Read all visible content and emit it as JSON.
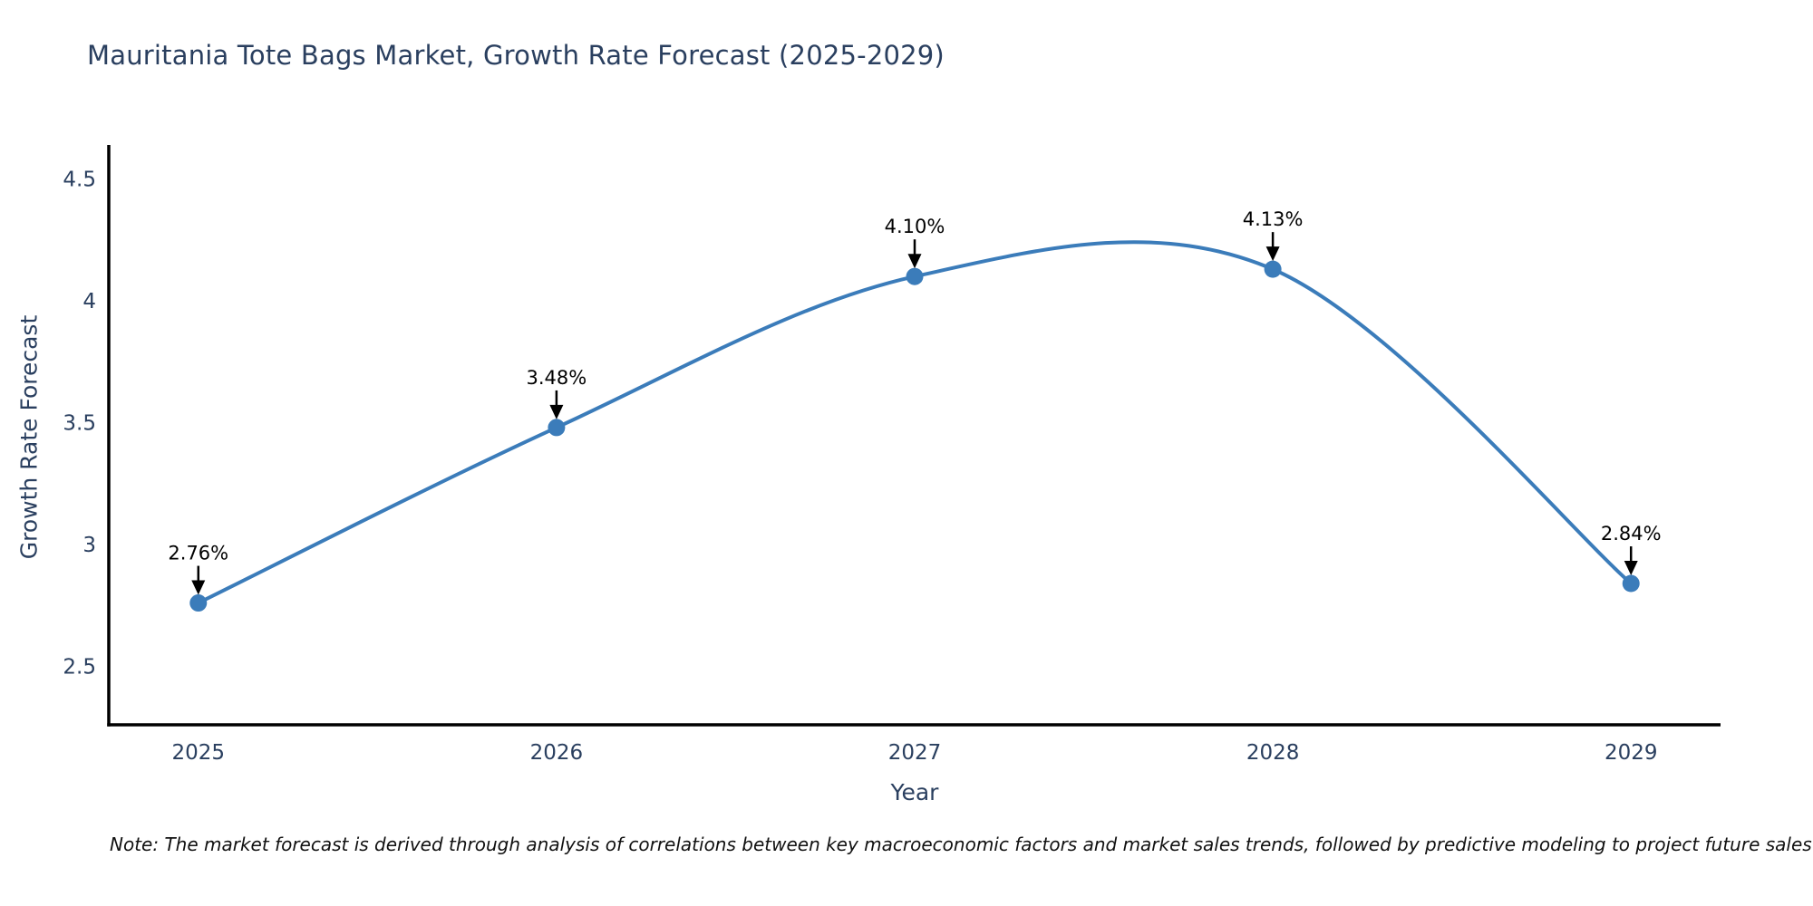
{
  "title": "Mauritania Tote Bags Market, Growth Rate Forecast (2025-2029)",
  "note": "Note: The market forecast is derived through analysis of correlations between key macroeconomic factors and market sales trends, followed by predictive modeling to project future sales",
  "chart_data": {
    "type": "line",
    "title": "Mauritania Tote Bags Market, Growth Rate Forecast (2025-2029)",
    "xlabel": "Year",
    "ylabel": "Growth Rate Forecast",
    "x": [
      2025,
      2026,
      2027,
      2028,
      2029
    ],
    "series": [
      {
        "name": "Growth Rate Forecast",
        "values": [
          2.76,
          3.48,
          4.1,
          4.13,
          2.84
        ]
      }
    ],
    "point_labels": [
      "2.76%",
      "3.48%",
      "4.10%",
      "4.13%",
      "2.84%"
    ],
    "xtick_labels": [
      "2025",
      "2026",
      "2027",
      "2028",
      "2029"
    ],
    "ytick_values": [
      2.5,
      3,
      3.5,
      4,
      4.5
    ],
    "ytick_labels": [
      "2.5",
      "3",
      "3.5",
      "4",
      "4.5"
    ],
    "xlim": [
      2024.75,
      2029.25
    ],
    "ylim": [
      2.26,
      4.64
    ],
    "grid": false,
    "legend": "none",
    "line_shape": "spline",
    "line_color": "#3b7cba",
    "marker_color": "#3b7cba",
    "axis_color": "#000000",
    "tick_color": "#2a3f5f",
    "annotation_color": "#000000"
  }
}
